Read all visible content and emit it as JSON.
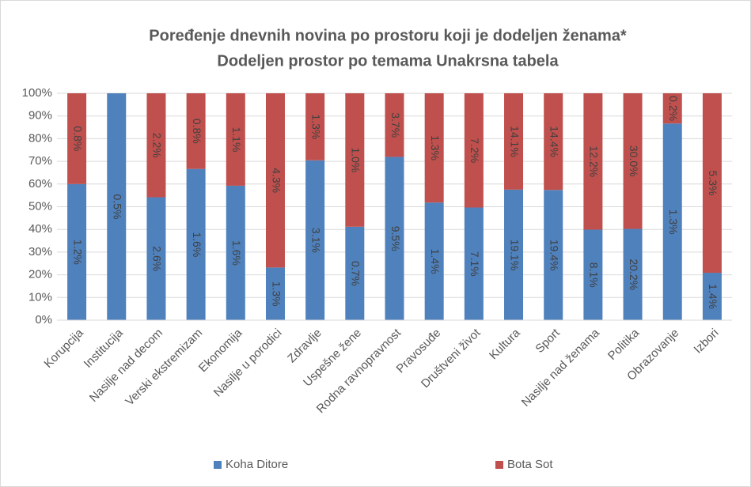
{
  "chart_data": {
    "type": "bar",
    "stacked": "percent",
    "title": "Poređenje dnevnih novina po prostoru koji je dodeljen ženama*",
    "subtitle": "Dodeljen prostor po temama Unakrsna tabela",
    "categories": [
      "Korupcija",
      "Institucija",
      "Nasilje nad decom",
      "Verski ekstremizam",
      "Ekonomija",
      "Nasilje u porodici",
      "Zdravlje",
      "Uspešne žene",
      "Rodna ravnopravnost",
      "Pravosuđe",
      "Društveni život",
      "Kultura",
      "Sport",
      "Nasilje nad ženama",
      "Politika",
      "Obrazovanje",
      "Izbori"
    ],
    "series": [
      {
        "name": "Koha Ditore",
        "color": "#4f81bd",
        "values": [
          1.2,
          0.5,
          2.6,
          1.6,
          1.6,
          1.3,
          3.1,
          0.7,
          9.5,
          1.4,
          7.1,
          19.1,
          19.4,
          8.1,
          20.2,
          1.3,
          1.4
        ],
        "value_labels": [
          "1.2%",
          "0.5%",
          "2.6%",
          "1.6%",
          "1.6%",
          "1.3%",
          "3.1%",
          "0.7%",
          "9.5%",
          "1.4%",
          "7.1%",
          "19.1%",
          "19.4%",
          "8.1%",
          "20.2%",
          "1.3%",
          "1.4%"
        ]
      },
      {
        "name": "Bota Sot",
        "color": "#c0504d",
        "values": [
          0.8,
          null,
          2.2,
          0.8,
          1.1,
          4.3,
          1.3,
          1.0,
          3.7,
          1.3,
          7.2,
          14.1,
          14.4,
          12.2,
          30.0,
          0.2,
          5.3
        ],
        "value_labels": [
          "0.8%",
          null,
          "2.2%",
          "0.8%",
          "1.1%",
          "4.3%",
          "1.3%",
          "1.0%",
          "3.7%",
          "1.3%",
          "7.2%",
          "14.1%",
          "14.4%",
          "12.2%",
          "30.0%",
          "0.2%",
          "5.3%"
        ]
      }
    ],
    "ylim": [
      0,
      100
    ],
    "yticks": [
      {
        "value": 0,
        "label": "0%"
      },
      {
        "value": 10,
        "label": "10%"
      },
      {
        "value": 20,
        "label": "20%"
      },
      {
        "value": 30,
        "label": "30%"
      },
      {
        "value": 40,
        "label": "40%"
      },
      {
        "value": 50,
        "label": "50%"
      },
      {
        "value": 60,
        "label": "60%"
      },
      {
        "value": 70,
        "label": "70%"
      },
      {
        "value": 80,
        "label": "80%"
      },
      {
        "value": 90,
        "label": "90%"
      },
      {
        "value": 100,
        "label": "100%"
      }
    ],
    "grid": true,
    "legend": "bottom"
  }
}
